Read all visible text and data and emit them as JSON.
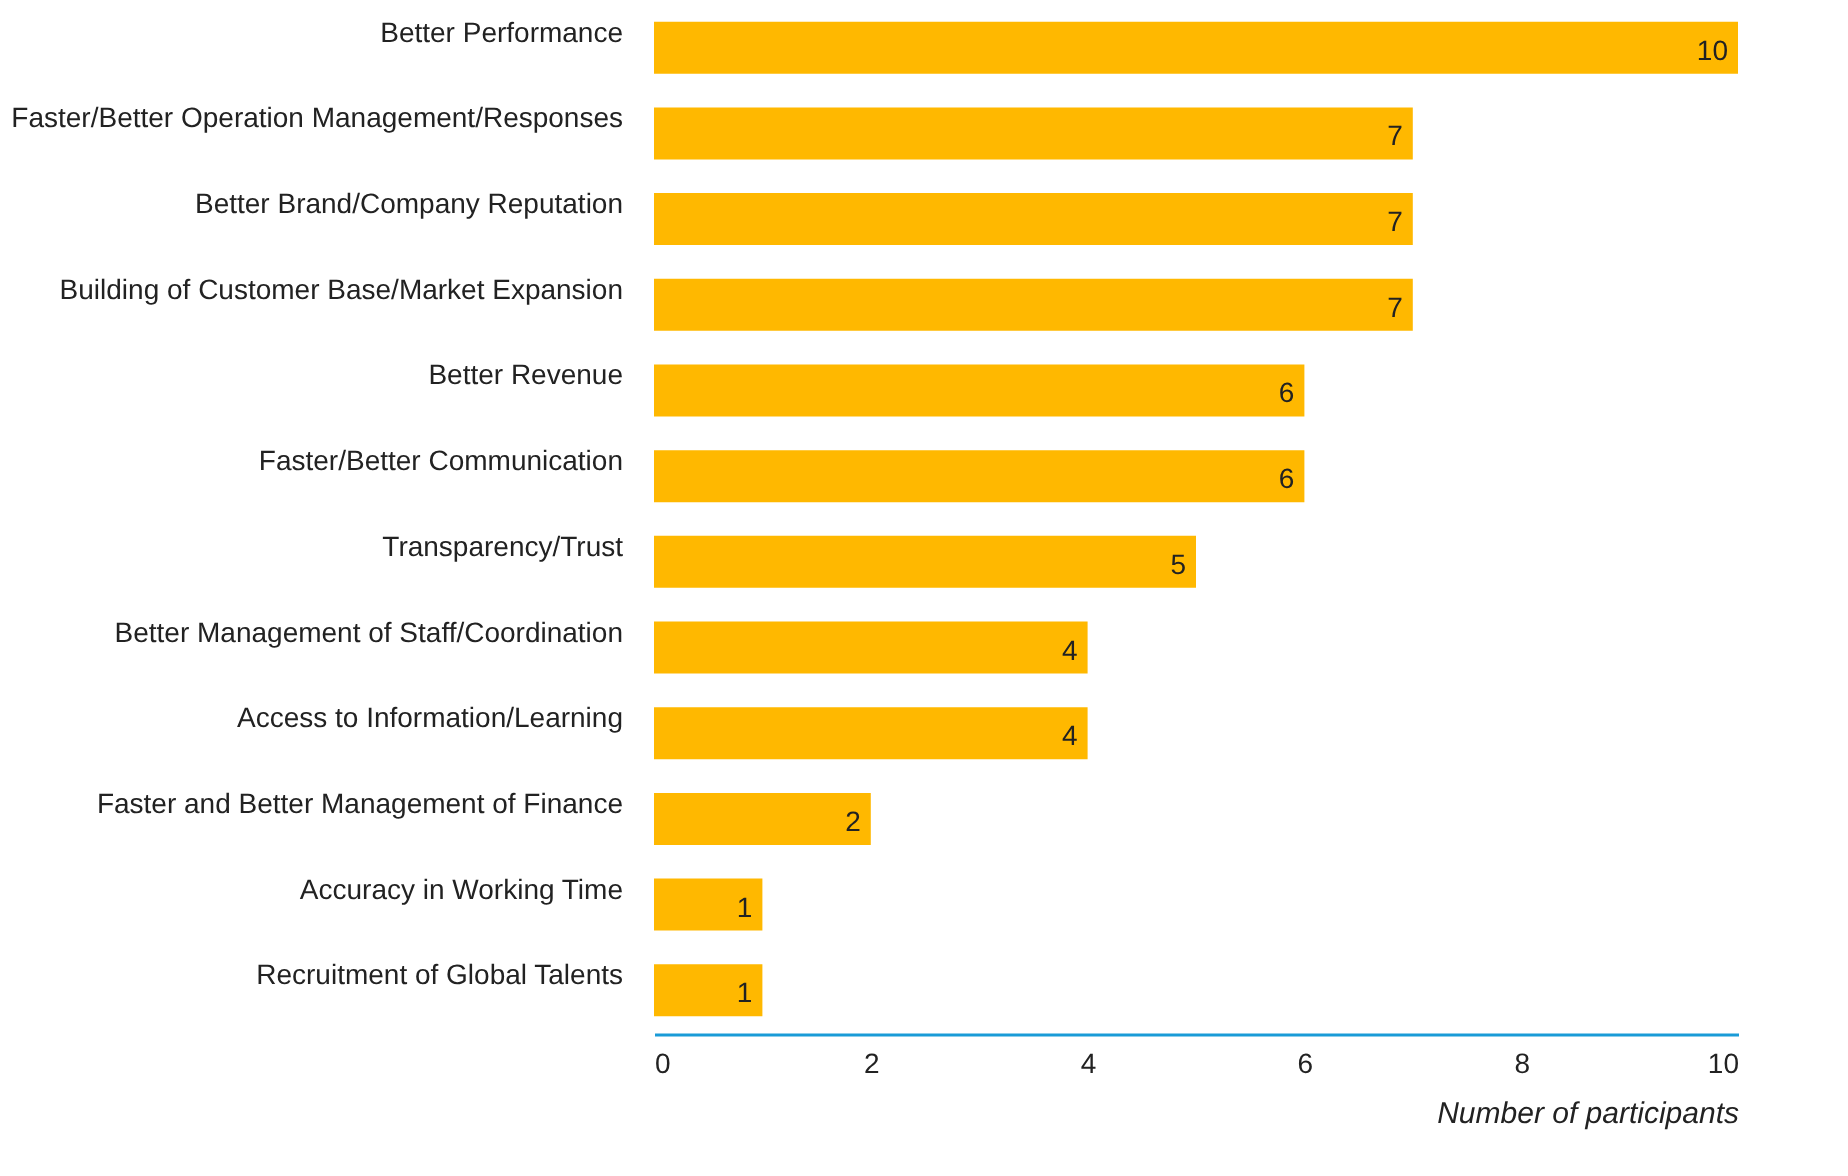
{
  "chart_data": {
    "type": "bar",
    "orientation": "horizontal",
    "xlabel": "Number of participants",
    "categories": [
      "Better Performance",
      "Faster/Better Operation Management/Responses",
      "Better Brand/Company Reputation",
      "Building of Customer Base/Market Expansion",
      "Better Revenue",
      "Faster/Better Communication",
      "Transparency/Trust",
      "Better Management of Staff/Coordination",
      "Access to Information/Learning",
      "Faster and Better Management of Finance",
      "Accuracy in Working Time",
      "Recruitment of Global Talents"
    ],
    "values": [
      10,
      7,
      7,
      7,
      6,
      6,
      5,
      4,
      4,
      2,
      1,
      1
    ],
    "color": "#ffb800",
    "xlim": [
      0,
      10
    ],
    "xticks": [
      0,
      2,
      4,
      6,
      8,
      10
    ],
    "data_labels": true,
    "grid": false
  }
}
